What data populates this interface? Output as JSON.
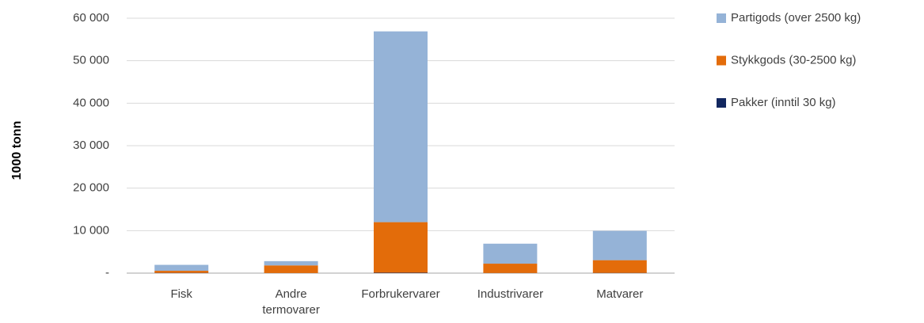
{
  "chart_data": {
    "type": "stacked_bar",
    "y_label": "1000 tonn",
    "categories": [
      "Fisk",
      "Andre termovarer",
      "Forbrukervarer",
      "Industrivarer",
      "Matvarer"
    ],
    "series": [
      {
        "name": "Pakker (inntil 30 kg)",
        "color": "#12275f",
        "values": [
          50,
          20,
          100,
          30,
          50
        ]
      },
      {
        "name": "Stykkgods (30-2500 kg)",
        "color": "#e36c0a",
        "values": [
          500,
          1800,
          11900,
          2200,
          3000
        ]
      },
      {
        "name": "Partigods (over 2500 kg)",
        "color": "#95b3d7",
        "values": [
          1400,
          1000,
          44900,
          4700,
          6900
        ]
      }
    ],
    "ylim": [
      0,
      60000
    ],
    "yticks": [
      {
        "value": 0,
        "label": "-"
      },
      {
        "value": 10000,
        "label": "10 000"
      },
      {
        "value": 20000,
        "label": "20 000"
      },
      {
        "value": 30000,
        "label": "30 000"
      },
      {
        "value": 40000,
        "label": "40 000"
      },
      {
        "value": 50000,
        "label": "50 000"
      },
      {
        "value": 60000,
        "label": "60 000"
      }
    ],
    "grid": true,
    "legend": "right"
  }
}
